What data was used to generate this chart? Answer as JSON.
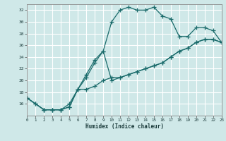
{
  "xlabel": "Humidex (Indice chaleur)",
  "background_color": "#cfe8e8",
  "grid_color": "#ffffff",
  "line_color": "#1a6b6b",
  "xlim": [
    0,
    23
  ],
  "ylim": [
    14,
    33
  ],
  "xticks": [
    0,
    1,
    2,
    3,
    4,
    5,
    6,
    7,
    8,
    9,
    10,
    11,
    12,
    13,
    14,
    15,
    16,
    17,
    18,
    19,
    20,
    21,
    22,
    23
  ],
  "yticks": [
    16,
    18,
    20,
    22,
    24,
    26,
    28,
    30,
    32
  ],
  "ytick_labels": [
    "16",
    "18",
    "20",
    "22",
    "24",
    "26",
    "28",
    "30",
    "32"
  ],
  "line1_x": [
    0,
    1,
    2,
    3,
    4,
    5,
    6,
    7,
    8,
    9,
    10,
    11,
    12,
    13,
    14,
    15,
    16,
    17,
    18,
    19,
    20,
    21,
    22,
    23
  ],
  "line1_y": [
    17,
    16,
    15,
    15,
    15,
    15.5,
    18.5,
    21,
    23.5,
    25,
    30,
    32,
    32.5,
    32,
    32,
    32.5,
    31,
    30.5,
    27.5,
    27.5,
    29,
    29,
    28.5,
    26.5
  ],
  "line2_x": [
    0,
    1,
    2,
    3,
    4,
    5,
    6,
    7,
    8,
    9,
    10,
    11,
    12,
    13,
    14,
    15,
    16,
    17,
    18,
    19,
    20,
    21,
    22,
    23
  ],
  "line2_y": [
    17,
    16,
    15,
    15,
    15,
    15.5,
    18.5,
    18.5,
    19,
    20,
    20.5,
    20.5,
    21,
    21.5,
    22,
    22.5,
    23,
    24,
    25,
    25.5,
    26.5,
    27,
    27,
    26.5
  ],
  "line3_x": [
    0,
    2,
    3,
    4,
    5,
    6,
    7,
    8,
    9,
    10,
    11,
    12,
    13,
    14,
    15,
    16,
    17,
    18,
    19,
    20,
    21,
    22,
    23
  ],
  "line3_y": [
    17,
    15,
    15,
    15,
    16,
    18.5,
    20.5,
    23,
    25,
    20,
    20.5,
    21,
    21.5,
    22,
    22.5,
    23,
    24,
    25,
    25.5,
    26.5,
    27,
    27,
    26.5
  ]
}
